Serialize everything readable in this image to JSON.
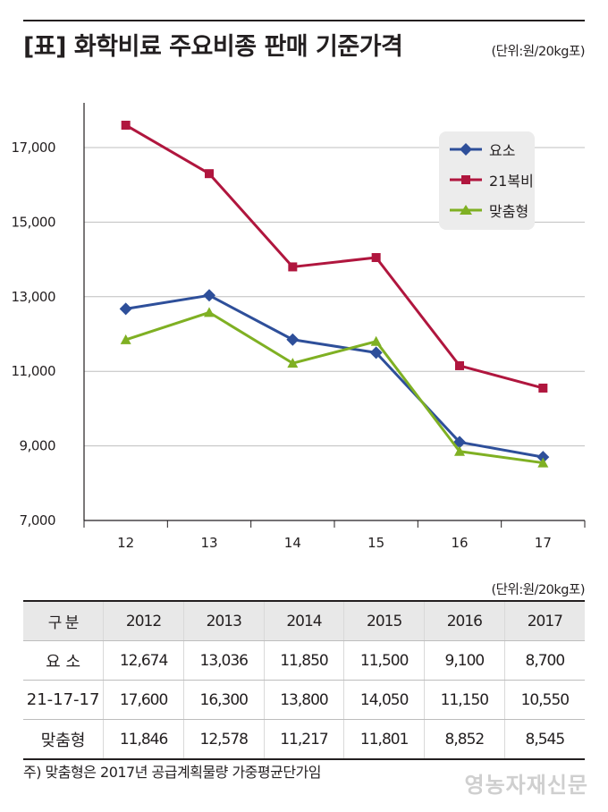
{
  "title": "[표] 화학비료 주요비종 판매 기준가격",
  "unit_chart": "(단위:원/20kg포)",
  "unit_table": "(단위:원/20kg포)",
  "note": "주) 맞춤형은 2017년 공급계획물량 가중평균단가임",
  "watermark": "영농자재신문",
  "colors": {
    "urea": "#2e4f9a",
    "complex": "#b0163e",
    "custom": "#7fb023",
    "grid": "#bfbfbf",
    "axis": "#231f20"
  },
  "chart_data": {
    "type": "line",
    "title": "[표] 화학비료 주요비종 판매 기준가격",
    "x": [
      "12",
      "13",
      "14",
      "15",
      "16",
      "17"
    ],
    "ylim": [
      7000,
      18000
    ],
    "yticks": [
      7000,
      9000,
      11000,
      13000,
      15000,
      17000
    ],
    "ytick_labels": [
      "7,000",
      "9,000",
      "11,000",
      "13,000",
      "15,000",
      "17,000"
    ],
    "grid": true,
    "legend_position": "top-right",
    "series": [
      {
        "name": "요소",
        "marker": "diamond",
        "color": "#2e4f9a",
        "values": [
          12674,
          13036,
          11850,
          11500,
          9100,
          8700
        ]
      },
      {
        "name": "21복비",
        "marker": "square",
        "color": "#b0163e",
        "values": [
          17600,
          16300,
          13800,
          14050,
          11150,
          10550
        ]
      },
      {
        "name": "맞춤형",
        "marker": "triangle",
        "color": "#7fb023",
        "values": [
          11846,
          12578,
          11217,
          11801,
          8852,
          8545
        ]
      }
    ]
  },
  "table": {
    "headers": [
      "구 분",
      "2012",
      "2013",
      "2014",
      "2015",
      "2016",
      "2017"
    ],
    "rows": [
      [
        "요 소",
        "12,674",
        "13,036",
        "11,850",
        "11,500",
        "9,100",
        "8,700"
      ],
      [
        "21-17-17",
        "17,600",
        "16,300",
        "13,800",
        "14,050",
        "11,150",
        "10,550"
      ],
      [
        "맞춤형",
        "11,846",
        "12,578",
        "11,217",
        "11,801",
        "8,852",
        "8,545"
      ]
    ]
  }
}
